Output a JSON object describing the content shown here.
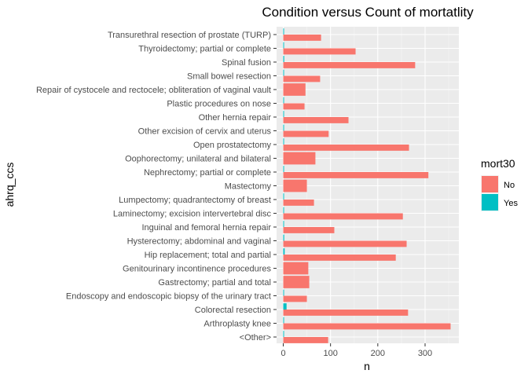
{
  "chart_data": {
    "type": "bar",
    "orientation": "horizontal",
    "position": "dodge",
    "title": "Condition versus Count of mortatlity",
    "xlabel": "n",
    "ylabel": "ahrq_ccs",
    "xlim": [
      0,
      355
    ],
    "x_ticks": [
      0,
      100,
      200,
      300
    ],
    "grid": true,
    "legend": {
      "title": "mort30",
      "position": "right",
      "entries": [
        {
          "label": "No",
          "color": "#F8766D"
        },
        {
          "label": "Yes",
          "color": "#00BFC4"
        }
      ]
    },
    "categories": [
      "Transurethral resection of prostate (TURP)",
      "Thyroidectomy; partial or complete",
      "Spinal fusion",
      "Small bowel resection",
      "Repair of cystocele and rectocele; obliteration of vaginal vault",
      "Plastic procedures on nose",
      "Other hernia repair",
      "Other excision of cervix and uterus",
      "Open prostatectomy",
      "Oophorectomy; unilateral and bilateral",
      "Nephrectomy; partial or complete",
      "Mastectomy",
      "Lumpectomy; quadrantectomy of breast",
      "Laminectomy; excision intervertebral disc",
      "Inguinal and femoral hernia repair",
      "Hysterectomy; abdominal and vaginal",
      "Hip replacement; total and partial",
      "Genitourinary incontinence procedures",
      "Gastrectomy; partial and total",
      "Endoscopy and endoscopic biopsy of the urinary tract",
      "Colorectal resection",
      "Arthroplasty knee",
      "<Other>"
    ],
    "series": [
      {
        "name": "No",
        "color": "#F8766D",
        "values": [
          80,
          153,
          279,
          78,
          47,
          45,
          138,
          96,
          266,
          68,
          307,
          50,
          65,
          253,
          108,
          261,
          238,
          53,
          55,
          50,
          264,
          354,
          95
        ]
      },
      {
        "name": "Yes",
        "color": "#00BFC4",
        "values": [
          1,
          1,
          2,
          1,
          null,
          1,
          1,
          1,
          1,
          null,
          1,
          null,
          1,
          1,
          1,
          2,
          3,
          null,
          null,
          1,
          7,
          1,
          1
        ]
      }
    ],
    "single_bar": [
      false,
      false,
      false,
      false,
      true,
      false,
      false,
      false,
      false,
      true,
      false,
      true,
      false,
      false,
      false,
      false,
      false,
      true,
      true,
      false,
      false,
      false,
      false
    ]
  },
  "colors": {
    "panel_bg": "#EBEBEB",
    "grid_major": "#FFFFFF",
    "axis_text": "#4D4D4D",
    "tick": "#333333"
  }
}
